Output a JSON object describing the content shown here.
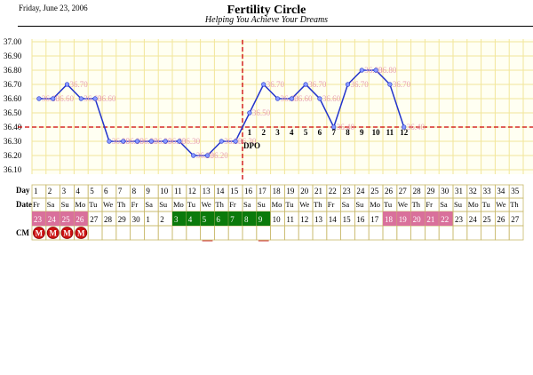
{
  "header": {
    "date": "Friday, June 23, 2006",
    "title": "Fertility Circle",
    "subtitle": "Helping You Achieve Your Dreams"
  },
  "chart_data": {
    "type": "line",
    "title": "Fertility Circle",
    "subtitle": "Helping You Achieve Your Dreams",
    "xlabel": "Day",
    "ylabel": "",
    "ylim": [
      36.1,
      37.0
    ],
    "y_ticks": [
      "37.00",
      "36.90",
      "36.80",
      "36.70",
      "36.60",
      "36.50",
      "36.40",
      "36.30",
      "36.20",
      "36.10"
    ],
    "grid": true,
    "x": [
      1,
      2,
      3,
      4,
      5,
      6,
      7,
      8,
      9,
      10,
      11,
      12,
      13,
      14,
      15,
      16,
      17,
      18,
      19,
      20,
      21,
      22,
      23,
      24,
      25,
      26,
      27
    ],
    "values": [
      36.6,
      36.6,
      36.7,
      36.6,
      36.6,
      36.3,
      36.3,
      36.3,
      36.3,
      36.3,
      36.3,
      36.2,
      36.2,
      36.3,
      36.3,
      36.5,
      36.7,
      36.6,
      36.6,
      36.7,
      36.6,
      36.4,
      36.7,
      36.8,
      36.8,
      36.7,
      36.4
    ],
    "data_labels": [
      "36.60",
      "36.60",
      "36.70",
      "36.60",
      "36.60",
      "36.30",
      "36.30",
      "36.30",
      "36.30",
      "36.30",
      "36.30",
      "36.20",
      "36.20",
      "36.30",
      "36.30",
      "36.50",
      "36.70",
      "36.60",
      "36.60",
      "36.70",
      "36.60",
      "36.40",
      "36.70",
      "36.80",
      "36.80",
      "36.70",
      "36.40"
    ],
    "coverline": 36.4,
    "ovulation_day": 15,
    "dpo": {
      "label": "DPO",
      "days": [
        16,
        17,
        18,
        19,
        20,
        21,
        22,
        23,
        24,
        25,
        26,
        27
      ],
      "numbers": [
        "1",
        "2",
        "3",
        "4",
        "5",
        "6",
        "7",
        "8",
        "9",
        "10",
        "11",
        "12"
      ]
    },
    "line_color": "#2233cc",
    "coverline_color": "#cc0000",
    "grid_color": "#f2e69a",
    "plot_bg": "#fffff2"
  },
  "table": {
    "row_labels": {
      "day": "Day",
      "date": "Date",
      "cm": "CM"
    },
    "days": [
      "1",
      "2",
      "3",
      "4",
      "5",
      "6",
      "7",
      "8",
      "9",
      "10",
      "11",
      "12",
      "13",
      "14",
      "15",
      "16",
      "17",
      "18",
      "19",
      "20",
      "21",
      "22",
      "23",
      "24",
      "25",
      "26",
      "27",
      "28",
      "29",
      "30",
      "31",
      "32",
      "33",
      "34",
      "35"
    ],
    "weekdays": [
      "Fr",
      "Sa",
      "Su",
      "Mo",
      "Tu",
      "We",
      "Th",
      "Fr",
      "Sa",
      "Su",
      "Mo",
      "Tu",
      "We",
      "Th",
      "Fr",
      "Sa",
      "Su",
      "Mo",
      "Tu",
      "We",
      "Th",
      "Fr",
      "Sa",
      "Su",
      "Mo",
      "Tu",
      "We",
      "Th",
      "Fr",
      "Sa",
      "Su",
      "Mo",
      "Tu",
      "We",
      "Th"
    ],
    "dates": [
      "23",
      "24",
      "25",
      "26",
      "27",
      "28",
      "29",
      "30",
      "1",
      "2",
      "3",
      "4",
      "5",
      "6",
      "7",
      "8",
      "9",
      "10",
      "11",
      "12",
      "13",
      "14",
      "15",
      "16",
      "17",
      "18",
      "19",
      "20",
      "21",
      "22",
      "23",
      "24",
      "25",
      "26",
      "27"
    ],
    "date_highlight": [
      "pink",
      "pink",
      "pink",
      "pink",
      "",
      "",
      "",
      "",
      "",
      "",
      "green",
      "green",
      "green",
      "green",
      "green",
      "green",
      "green",
      "",
      "",
      "",
      "",
      "",
      "",
      "",
      "",
      "pink",
      "pink",
      "pink",
      "pink",
      "pink",
      "",
      "",
      "",
      "",
      ""
    ],
    "cm": [
      "M",
      "M",
      "M",
      "M",
      "",
      "",
      "",
      "",
      "",
      "",
      "",
      "",
      "",
      "",
      "",
      "",
      "",
      "",
      "",
      "",
      "",
      "",
      "",
      "",
      "",
      "",
      "",
      "",
      "",
      "",
      "",
      "",
      "",
      "",
      ""
    ],
    "colors": {
      "pink": "#d9709b",
      "green": "#0b7a0b",
      "menses": "#cc1111",
      "table_border": "#c9b96a"
    }
  }
}
